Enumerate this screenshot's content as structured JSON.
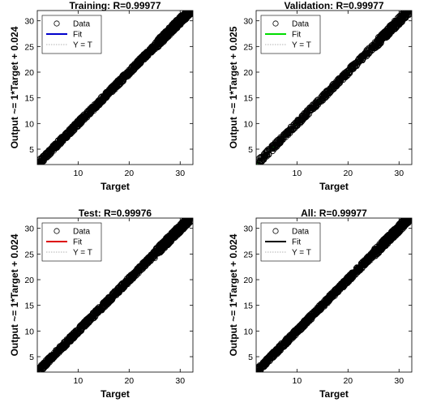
{
  "chart_data": [
    {
      "type": "scatter",
      "title": "Training: R=0.99977",
      "xlabel": "Target",
      "ylabel": "Output ~= 1*Target + 0.024",
      "xlim": [
        2,
        32.5
      ],
      "ylim": [
        2,
        32
      ],
      "xticks": [
        10,
        20,
        30
      ],
      "yticks": [
        5,
        10,
        15,
        20,
        25,
        30
      ],
      "grid": false,
      "legend_position": "top-left",
      "fit": {
        "slope": 1,
        "intercept": 0.024
      },
      "series": [
        {
          "name": "Data",
          "kind": "markers",
          "marker": "open-circle",
          "color": "#000000"
        },
        {
          "name": "Fit",
          "kind": "line",
          "color": "#0000cc",
          "slope": 1,
          "intercept": 0.024
        },
        {
          "name": "Y = T",
          "kind": "line",
          "color": "#b3b3b3",
          "slope": 1,
          "intercept": 0
        }
      ]
    },
    {
      "type": "scatter",
      "title": "Validation: R=0.99977",
      "xlabel": "Target",
      "ylabel": "Output ~= 1*Target + 0.025",
      "xlim": [
        2,
        32.5
      ],
      "ylim": [
        2,
        32
      ],
      "xticks": [
        10,
        20,
        30
      ],
      "yticks": [
        5,
        10,
        15,
        20,
        25,
        30
      ],
      "grid": false,
      "legend_position": "top-left",
      "fit": {
        "slope": 1,
        "intercept": 0.025
      },
      "series": [
        {
          "name": "Data",
          "kind": "markers",
          "marker": "open-circle",
          "color": "#000000"
        },
        {
          "name": "Fit",
          "kind": "line",
          "color": "#00dd00",
          "slope": 1,
          "intercept": 0.025
        },
        {
          "name": "Y = T",
          "kind": "line",
          "color": "#b3b3b3",
          "slope": 1,
          "intercept": 0
        }
      ]
    },
    {
      "type": "scatter",
      "title": "Test: R=0.99976",
      "xlabel": "Target",
      "ylabel": "Output ~= 1*Target + 0.024",
      "xlim": [
        2,
        32.5
      ],
      "ylim": [
        2,
        32
      ],
      "xticks": [
        10,
        20,
        30
      ],
      "yticks": [
        5,
        10,
        15,
        20,
        25,
        30
      ],
      "grid": false,
      "legend_position": "top-left",
      "fit": {
        "slope": 1,
        "intercept": 0.024
      },
      "series": [
        {
          "name": "Data",
          "kind": "markers",
          "marker": "open-circle",
          "color": "#000000"
        },
        {
          "name": "Fit",
          "kind": "line",
          "color": "#dd0000",
          "slope": 1,
          "intercept": 0.024
        },
        {
          "name": "Y = T",
          "kind": "line",
          "color": "#b3b3b3",
          "slope": 1,
          "intercept": 0
        }
      ]
    },
    {
      "type": "scatter",
      "title": "All: R=0.99977",
      "xlabel": "Target",
      "ylabel": "Output ~= 1*Target + 0.024",
      "xlim": [
        2,
        32.5
      ],
      "ylim": [
        2,
        32
      ],
      "xticks": [
        10,
        20,
        30
      ],
      "yticks": [
        5,
        10,
        15,
        20,
        25,
        30
      ],
      "grid": false,
      "legend_position": "top-left",
      "fit": {
        "slope": 1,
        "intercept": 0.024
      },
      "series": [
        {
          "name": "Data",
          "kind": "markers",
          "marker": "open-circle",
          "color": "#000000"
        },
        {
          "name": "Fit",
          "kind": "line",
          "color": "#000000",
          "slope": 1,
          "intercept": 0.024
        },
        {
          "name": "Y = T",
          "kind": "line",
          "color": "#b3b3b3",
          "slope": 1,
          "intercept": 0
        }
      ]
    }
  ]
}
